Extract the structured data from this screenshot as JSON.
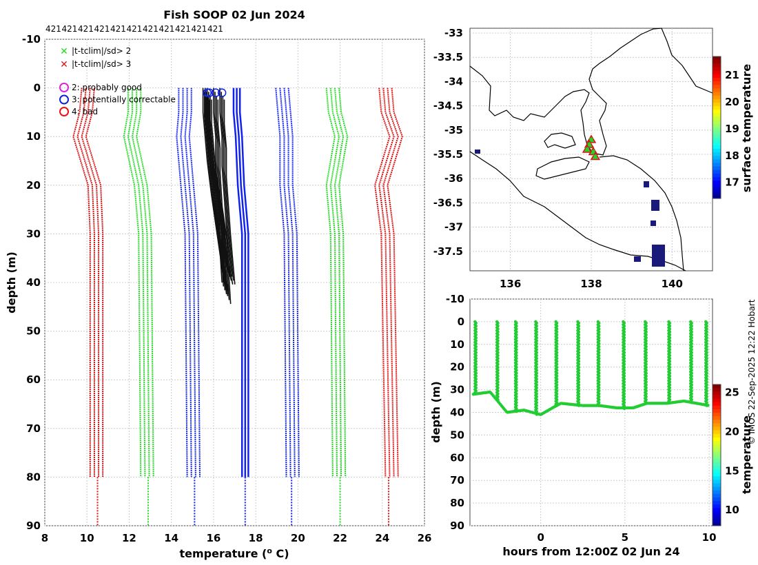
{
  "chart_data": [
    {
      "type": "line",
      "title": "Fish SOOP 02 Jun 2024",
      "top_counts": [
        "421",
        "421",
        "421",
        "421",
        "421",
        "421",
        "421",
        "421",
        "421",
        "421",
        "421"
      ],
      "xlabel_prefix": "temperature (",
      "xlabel_sup": "o",
      "xlabel_suffix": " C)",
      "ylabel": "depth (m)",
      "xlim": [
        8,
        26
      ],
      "ylim": [
        -10,
        90
      ],
      "xticks": [
        8,
        10,
        12,
        14,
        16,
        18,
        20,
        22,
        24,
        26
      ],
      "yticks": [
        -10,
        0,
        10,
        20,
        30,
        40,
        50,
        60,
        70,
        80,
        90
      ],
      "legend_flags": [
        {
          "label": "|t-tclim|/sd> 2",
          "color": "#22dd22"
        },
        {
          "label": "|t-tclim|/sd> 3",
          "color": "#dd1111"
        }
      ],
      "legend_qc": [
        {
          "label": "2: probably good",
          "color": "#dd22dd"
        },
        {
          "label": "3: potentially correctable",
          "color": "#1122dd"
        },
        {
          "label": "4: bad",
          "color": "#ee1111"
        }
      ],
      "climatology_depths": [
        0,
        5,
        10,
        20,
        30,
        80
      ],
      "series": [
        {
          "name": "clim -3sd",
          "color": "#dd1111",
          "values": [
            10.1,
            10.0,
            9.7,
            10.4,
            10.5,
            10.5
          ],
          "deep": 10.5
        },
        {
          "name": "clim -2sd",
          "color": "#22dd22",
          "values": [
            12.3,
            12.3,
            12.1,
            12.6,
            12.8,
            12.9
          ],
          "deep": 12.9
        },
        {
          "name": "clim -1sd",
          "color": "#1122ee",
          "values": [
            14.7,
            14.7,
            14.6,
            14.8,
            15.0,
            15.1
          ],
          "deep": 15.1
        },
        {
          "name": "clim mean",
          "color": "#1122ee",
          "values": [
            17.1,
            17.1,
            17.2,
            17.3,
            17.5,
            17.5
          ],
          "deep": 17.5
        },
        {
          "name": "clim +1sd",
          "color": "#1122ee",
          "values": [
            19.3,
            19.4,
            19.5,
            19.5,
            19.7,
            19.8
          ],
          "deep": 19.7
        },
        {
          "name": "clim +2sd",
          "color": "#22dd22",
          "values": [
            21.7,
            21.8,
            22.1,
            21.7,
            21.9,
            22.0
          ],
          "deep": 22.0
        },
        {
          "name": "clim +3sd",
          "color": "#dd1111",
          "values": [
            24.2,
            24.3,
            24.7,
            24.0,
            24.3,
            24.5
          ],
          "deep": 24.3
        }
      ],
      "profiles": [
        {
          "temps": [
            15.7,
            15.7,
            15.8,
            15.9,
            16.1,
            16.3,
            16.4,
            16.5
          ],
          "depths": [
            0,
            5,
            10,
            15,
            20,
            27,
            33,
            40
          ]
        },
        {
          "temps": [
            15.8,
            15.8,
            15.9,
            16.0,
            16.2,
            16.4,
            16.6,
            16.7
          ],
          "depths": [
            0,
            5,
            10,
            15,
            20,
            27,
            35,
            42
          ]
        },
        {
          "temps": [
            16.1,
            16.1,
            16.2,
            16.2,
            16.3,
            16.5,
            16.6,
            16.8
          ],
          "depths": [
            0,
            5,
            10,
            15,
            22,
            28,
            34,
            38
          ]
        },
        {
          "temps": [
            16.4,
            16.4,
            16.5,
            16.5,
            16.6,
            16.7,
            16.8,
            16.9
          ],
          "depths": [
            0,
            5,
            10,
            16,
            22,
            28,
            33,
            38
          ]
        },
        {
          "temps": [
            15.6,
            15.6,
            15.7,
            15.8,
            16.0,
            16.2,
            16.4,
            16.6
          ],
          "depths": [
            0,
            5,
            10,
            15,
            22,
            28,
            34,
            40
          ]
        }
      ],
      "profile_start_markers": [
        15.7,
        15.8,
        16.1,
        16.4
      ]
    },
    {
      "type": "scatter",
      "title": "",
      "xticks": [
        136,
        138,
        140
      ],
      "yticks": [
        -33,
        -33.5,
        -34,
        -34.5,
        -35,
        -35.5,
        -36,
        -36.5,
        -37,
        -37.5
      ],
      "xlim": [
        135,
        141
      ],
      "ylim": [
        -37.9,
        -32.9
      ],
      "colorbar_label": "surface temperature",
      "colorbar_ticks": [
        17,
        18,
        19,
        20,
        21
      ],
      "colorbar_range": [
        16.4,
        21.7
      ],
      "track": [
        {
          "lon": 138.0,
          "lat": -35.2
        },
        {
          "lon": 137.95,
          "lat": -35.3
        },
        {
          "lon": 137.9,
          "lat": -35.4
        },
        {
          "lon": 138.05,
          "lat": -35.45
        },
        {
          "lon": 138.1,
          "lat": -35.55
        }
      ]
    },
    {
      "type": "scatter",
      "xlabel": "hours from 12:00Z 02 Jun 24",
      "ylabel": "depth (m)",
      "xticks": [
        0,
        5,
        10
      ],
      "yticks": [
        -10,
        0,
        10,
        20,
        30,
        40,
        50,
        60,
        70,
        80,
        90
      ],
      "xlim": [
        -4.2,
        10.2
      ],
      "ylim": [
        -10,
        90
      ],
      "colorbar_label": "temperature",
      "colorbar_ticks": [
        10,
        15,
        20,
        25
      ],
      "colorbar_range": [
        8,
        26
      ],
      "point_color": "#22cc33",
      "casts": [
        -3.9,
        -2.6,
        -1.5,
        -0.3,
        0.9,
        2.2,
        3.4,
        4.9,
        6.2,
        7.6,
        8.9,
        9.8
      ],
      "seafloor": [
        {
          "h": -4.0,
          "d": 32
        },
        {
          "h": -3.0,
          "d": 31
        },
        {
          "h": -2.0,
          "d": 40
        },
        {
          "h": -1.0,
          "d": 39
        },
        {
          "h": 0.0,
          "d": 41
        },
        {
          "h": 0.7,
          "d": 38
        },
        {
          "h": 1.2,
          "d": 36
        },
        {
          "h": 2.5,
          "d": 37
        },
        {
          "h": 3.5,
          "d": 37
        },
        {
          "h": 4.5,
          "d": 38
        },
        {
          "h": 5.5,
          "d": 38
        },
        {
          "h": 6.3,
          "d": 36
        },
        {
          "h": 7.5,
          "d": 36
        },
        {
          "h": 8.5,
          "d": 35
        },
        {
          "h": 10.0,
          "d": 37
        }
      ]
    }
  ],
  "footer": "© IMOS 22-Sep-2025 12:22 Hobart"
}
